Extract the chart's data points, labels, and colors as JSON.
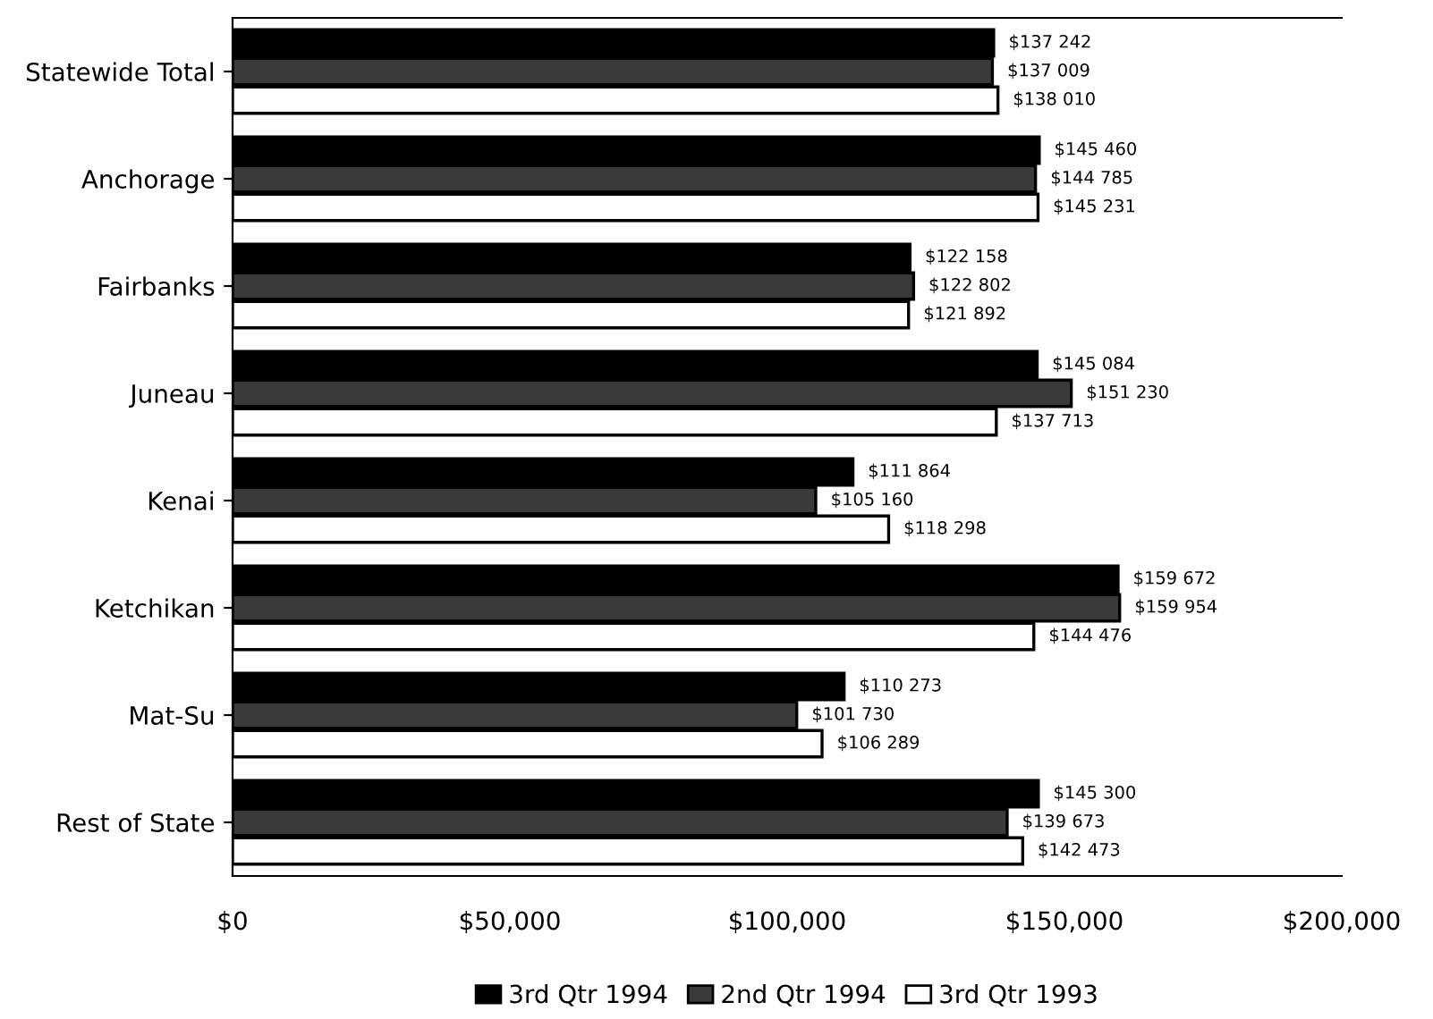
{
  "chart_data": {
    "type": "bar",
    "orientation": "horizontal",
    "categories": [
      "Statewide Total",
      "Anchorage",
      "Fairbanks",
      "Juneau",
      "Kenai",
      "Ketchikan",
      "Mat-Su",
      "Rest of State"
    ],
    "series": [
      {
        "name": "3rd Qtr 1994",
        "color": "#000000",
        "values": [
          137242,
          145460,
          122158,
          145084,
          111864,
          159672,
          110273,
          145300
        ],
        "value_labels": [
          "$137 242",
          "$145 460",
          "$122 158",
          "$145 084",
          "$111 864",
          "$159 672",
          "$110 273",
          "$145 300"
        ]
      },
      {
        "name": "2nd Qtr 1994",
        "color": "#3a3a3a",
        "values": [
          137009,
          144785,
          122802,
          151230,
          105160,
          159954,
          101730,
          139673
        ],
        "value_labels": [
          "$137 009",
          "$144 785",
          "$122 802",
          "$151 230",
          "$105 160",
          "$159 954",
          "$101 730",
          "$139 673"
        ]
      },
      {
        "name": "3rd Qtr 1993",
        "color": "#ffffff",
        "values": [
          138010,
          145231,
          121892,
          137713,
          118298,
          144476,
          106289,
          142473
        ],
        "value_labels": [
          "$138 010",
          "$145 231",
          "$121 892",
          "$137 713",
          "$118 298",
          "$144 476",
          "$106 289",
          "$142 473"
        ]
      }
    ],
    "xlim": [
      0,
      200000
    ],
    "xticks": [
      {
        "value": 0,
        "label": "$0"
      },
      {
        "value": 50000,
        "label": "$50,000"
      },
      {
        "value": 100000,
        "label": "$100,000"
      },
      {
        "value": 150000,
        "label": "$150,000"
      },
      {
        "value": 200000,
        "label": "$200,000"
      }
    ],
    "legend": "bottom",
    "grid": false
  }
}
